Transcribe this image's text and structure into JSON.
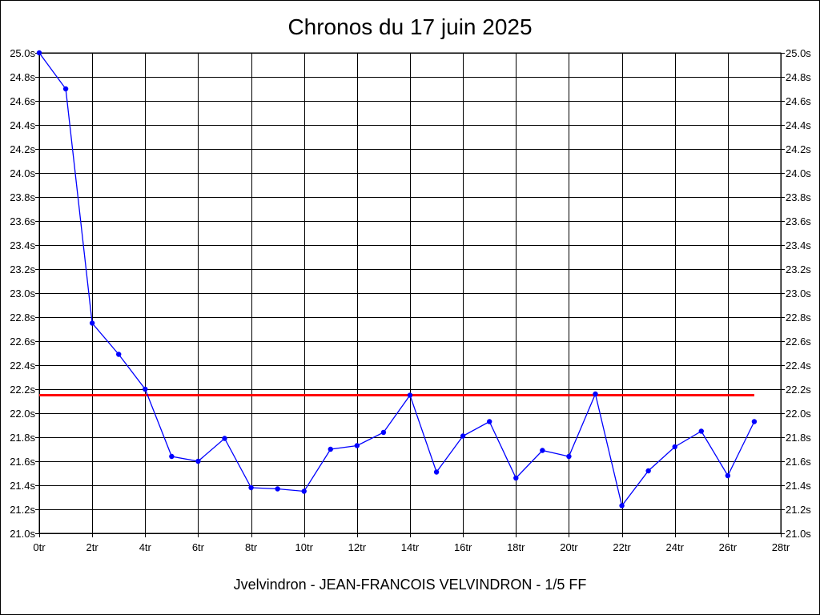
{
  "chart_data": {
    "type": "line",
    "title": "Chronos du 17 juin 2025",
    "footer": "Jvelvindron - JEAN-FRANCOIS VELVINDRON - 1/5 FF",
    "xlabel": "",
    "ylabel": "",
    "xlim": [
      0,
      28
    ],
    "ylim": [
      21.0,
      25.0
    ],
    "x_ticks": [
      0,
      2,
      4,
      6,
      8,
      10,
      12,
      14,
      16,
      18,
      20,
      22,
      24,
      26,
      28
    ],
    "x_tick_labels": [
      "0tr",
      "2tr",
      "4tr",
      "6tr",
      "8tr",
      "10tr",
      "12tr",
      "14tr",
      "16tr",
      "18tr",
      "20tr",
      "22tr",
      "24tr",
      "26tr",
      "28tr"
    ],
    "y_ticks": [
      21.0,
      21.2,
      21.4,
      21.6,
      21.8,
      22.0,
      22.2,
      22.4,
      22.6,
      22.8,
      23.0,
      23.2,
      23.4,
      23.6,
      23.8,
      24.0,
      24.2,
      24.4,
      24.6,
      24.8,
      25.0
    ],
    "y_tick_labels": [
      "21.0s",
      "21.2s",
      "21.4s",
      "21.6s",
      "21.8s",
      "22.0s",
      "22.2s",
      "22.4s",
      "22.6s",
      "22.8s",
      "23.0s",
      "23.2s",
      "23.4s",
      "23.6s",
      "23.8s",
      "24.0s",
      "24.2s",
      "24.4s",
      "24.6s",
      "24.8s",
      "25.0s"
    ],
    "grid": true,
    "series": [
      {
        "color": "#0000ff",
        "x": [
          0,
          1,
          2,
          3,
          4,
          5,
          6,
          7,
          8,
          9,
          10,
          11,
          12,
          13,
          14,
          15,
          16,
          17,
          18,
          19,
          20,
          21,
          22,
          23,
          24,
          25,
          26,
          27
        ],
        "values": [
          25.0,
          24.7,
          22.75,
          22.49,
          22.2,
          21.64,
          21.6,
          21.79,
          21.38,
          21.37,
          21.35,
          21.7,
          21.73,
          21.84,
          22.15,
          21.51,
          21.81,
          21.93,
          21.46,
          21.69,
          21.64,
          22.16,
          21.23,
          21.52,
          21.72,
          21.85,
          21.48,
          21.93
        ]
      }
    ],
    "reference_line": {
      "color": "#ff0000",
      "value": 22.15,
      "x_range": [
        0,
        27
      ]
    }
  }
}
